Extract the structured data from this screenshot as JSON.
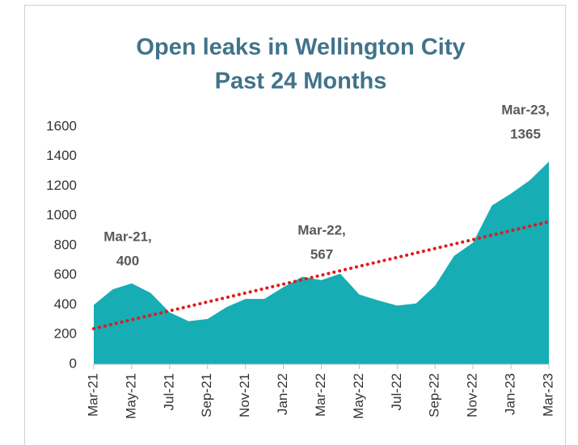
{
  "chart_data": {
    "type": "area",
    "title": "Open leaks in Wellington City",
    "subtitle": "Past 24 Months",
    "categories": [
      "Mar-21",
      null,
      "May-21",
      null,
      "Jul-21",
      null,
      "Sep-21",
      null,
      "Nov-21",
      null,
      "Jan-22",
      null,
      "Mar-22",
      null,
      "May-22",
      null,
      "Jul-22",
      null,
      "Sep-22",
      null,
      "Nov-22",
      null,
      "Jan-23",
      null,
      "Mar-23"
    ],
    "values": [
      400,
      505,
      545,
      480,
      350,
      290,
      305,
      385,
      440,
      440,
      520,
      590,
      567,
      610,
      470,
      430,
      395,
      410,
      530,
      730,
      820,
      1070,
      1150,
      1240,
      1365
    ],
    "color": "#16adb5",
    "trend": {
      "color": "#e31a1a",
      "values": [
        240,
        960
      ]
    },
    "ylim": [
      0,
      1600
    ],
    "yticks": [
      0,
      200,
      400,
      600,
      800,
      1000,
      1200,
      1400,
      1600
    ],
    "annotations": [
      [
        "Mar-21,",
        "400"
      ],
      [
        "Mar-22,",
        "567"
      ],
      [
        "Mar-23,",
        "1365"
      ]
    ]
  }
}
